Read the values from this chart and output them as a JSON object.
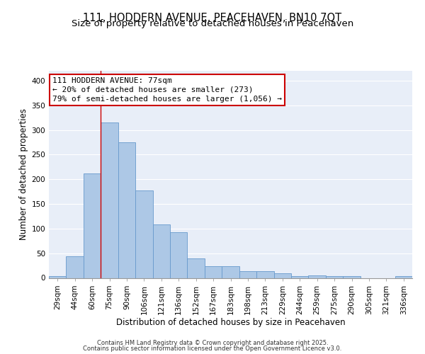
{
  "title_line1": "111, HODDERN AVENUE, PEACEHAVEN, BN10 7QT",
  "title_line2": "Size of property relative to detached houses in Peacehaven",
  "xlabel": "Distribution of detached houses by size in Peacehaven",
  "ylabel": "Number of detached properties",
  "categories": [
    "29sqm",
    "44sqm",
    "60sqm",
    "75sqm",
    "90sqm",
    "106sqm",
    "121sqm",
    "136sqm",
    "152sqm",
    "167sqm",
    "183sqm",
    "198sqm",
    "213sqm",
    "229sqm",
    "244sqm",
    "259sqm",
    "275sqm",
    "290sqm",
    "305sqm",
    "321sqm",
    "336sqm"
  ],
  "values": [
    3,
    44,
    212,
    315,
    275,
    178,
    108,
    92,
    40,
    23,
    24,
    14,
    13,
    10,
    4,
    5,
    3,
    4,
    0,
    0,
    3
  ],
  "bar_color": "#adc8e6",
  "bar_edge_color": "#6699cc",
  "background_color": "#e8eef8",
  "grid_color": "#ffffff",
  "annotation_text_line1": "111 HODDERN AVENUE: 77sqm",
  "annotation_text_line2": "← 20% of detached houses are smaller (273)",
  "annotation_text_line3": "79% of semi-detached houses are larger (1,056) →",
  "annotation_box_facecolor": "#ffffff",
  "annotation_box_edgecolor": "#cc0000",
  "vline_color": "#cc0000",
  "vline_x_index": 3,
  "ylim": [
    0,
    420
  ],
  "yticks": [
    0,
    50,
    100,
    150,
    200,
    250,
    300,
    350,
    400
  ],
  "footer_line1": "Contains HM Land Registry data © Crown copyright and database right 2025.",
  "footer_line2": "Contains public sector information licensed under the Open Government Licence v3.0.",
  "title_fontsize": 10.5,
  "subtitle_fontsize": 9.5,
  "axis_label_fontsize": 8.5,
  "tick_fontsize": 7.5,
  "annotation_fontsize": 8,
  "footer_fontsize": 6
}
